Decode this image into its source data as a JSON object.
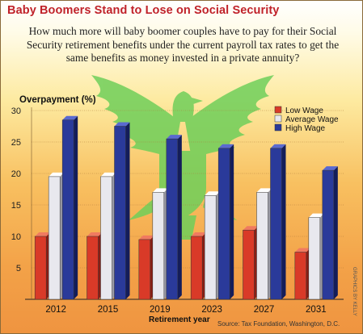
{
  "header": {
    "title": "Baby Boomers Stand to Lose on Social Security",
    "subtitle": "How much more will baby boomer couples have to pay for their Social Security retirement benefits under the current payroll tax rates to get the same benefits as money invested in a private annuity?"
  },
  "source": "Source: Tax Foundation, Washington, D.C.",
  "credit": "GRAPHICS BY KELLY",
  "colors": {
    "low": "#d93a28",
    "average": "#e8e8ee",
    "high": "#2a3a9a",
    "seal": "#6fcf5a"
  },
  "chart_data": {
    "type": "bar",
    "title": "Baby Boomers Stand to Lose on Social Security",
    "ylabel": "Overpayment (%)",
    "xlabel": "Retirement year",
    "categories": [
      "2012",
      "2015",
      "2019",
      "2023",
      "2027",
      "2031"
    ],
    "ylim": [
      0,
      30
    ],
    "yticks": [
      5,
      10,
      15,
      20,
      25,
      30
    ],
    "grid": true,
    "legend": "top-right",
    "series": [
      {
        "name": "Low Wage",
        "values": [
          10,
          10,
          9.5,
          10,
          11,
          7.5
        ]
      },
      {
        "name": "Average Wage",
        "values": [
          19.5,
          19.5,
          17,
          16.5,
          17,
          13
        ]
      },
      {
        "name": "High Wage",
        "values": [
          28.5,
          27.5,
          25.5,
          24,
          24,
          20.5
        ]
      }
    ]
  }
}
